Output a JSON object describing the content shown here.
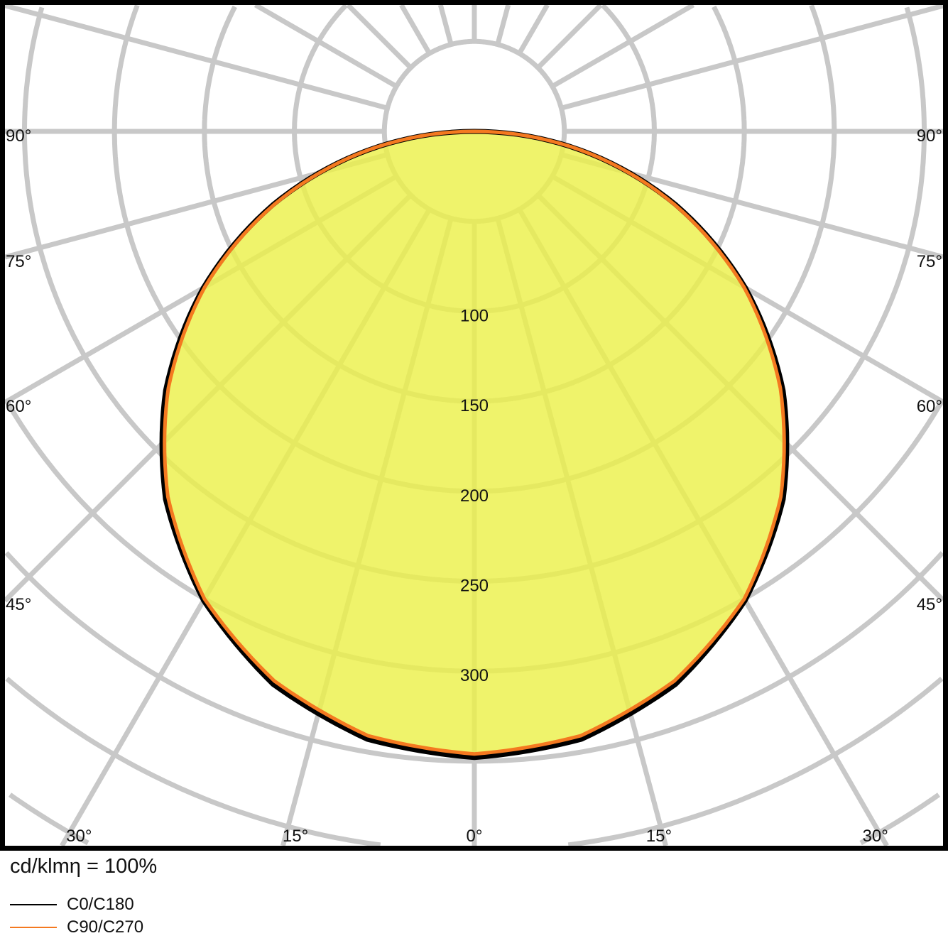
{
  "chart_data": {
    "type": "polar",
    "unit_label": "cd/klmη = 100%",
    "radial_ticks": [
      100,
      150,
      200,
      250,
      300
    ],
    "radial_grid_step": 50,
    "angle_ticks": [
      "0°",
      "15°",
      "30°",
      "45°",
      "60°",
      "75°",
      "90°"
    ],
    "angle_tick_values": [
      0,
      15,
      30,
      45,
      60,
      75,
      90
    ],
    "grid": true,
    "legend_placement": "bottom-left",
    "fill_color": "#ecf04a",
    "grid_color": "#c8c8c8",
    "series": [
      {
        "name": "C0/C180",
        "color": "#000000",
        "angles": [
          0,
          10,
          20,
          30,
          40,
          50,
          60,
          70,
          80,
          90
        ],
        "values": [
          348,
          343,
          327,
          301,
          267,
          224,
          174,
          119,
          60,
          0
        ]
      },
      {
        "name": "C90/C270",
        "color": "#f47920",
        "angles": [
          0,
          10,
          20,
          30,
          40,
          50,
          60,
          70,
          80,
          90
        ],
        "values": [
          346,
          341,
          325,
          300,
          265,
          222,
          173,
          118,
          60,
          0
        ]
      }
    ]
  }
}
